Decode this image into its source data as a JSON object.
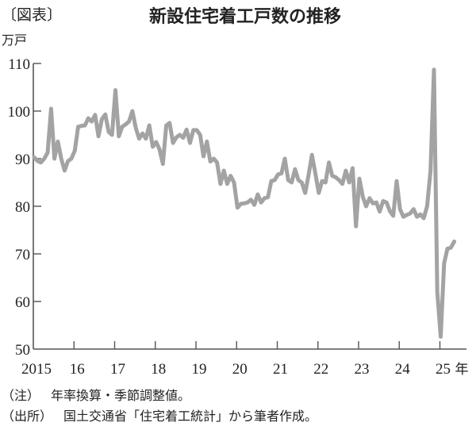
{
  "header": {
    "figure_tag": "〔図表〕",
    "title": "新設住宅着工戸数の推移"
  },
  "chart_data": {
    "type": "line",
    "title": "新設住宅着工戸数の推移",
    "ylabel": "万戸",
    "xlabel": "年",
    "ylim": [
      50,
      110
    ],
    "yticks": [
      50,
      60,
      70,
      80,
      90,
      100,
      110
    ],
    "xtick_labels": [
      "2015",
      "16",
      "17",
      "18",
      "19",
      "20",
      "21",
      "22",
      "23",
      "24",
      "25"
    ],
    "x_unit_label": "年",
    "grid": false,
    "legend": null,
    "line_color": "#a3a3a3",
    "axis_color": "#555555",
    "series": [
      {
        "name": "新設住宅着工戸数（年率換算・季節調整値）",
        "frequency": "monthly",
        "start": "2015-01",
        "values": [
          90.3,
          89.5,
          89.2,
          90.0,
          91.3,
          100.5,
          90.0,
          93.6,
          90.0,
          87.5,
          89.5,
          90.0,
          91.7,
          96.7,
          96.9,
          97.0,
          98.5,
          97.8,
          99.2,
          94.7,
          98.3,
          99.3,
          95.6,
          95.0,
          104.4,
          94.7,
          96.7,
          97.2,
          97.8,
          100.0,
          96.5,
          94.2,
          95.3,
          94.2,
          97.0,
          92.5,
          93.5,
          92.0,
          88.9,
          97.0,
          97.5,
          93.3,
          94.5,
          95.0,
          94.4,
          96.1,
          93.3,
          96.0,
          96.0,
          95.0,
          90.5,
          93.6,
          89.4,
          90.0,
          89.2,
          84.7,
          87.5,
          84.7,
          86.4,
          85.0,
          79.7,
          80.5,
          80.6,
          80.8,
          81.4,
          80.3,
          82.5,
          80.8,
          81.7,
          81.9,
          85.3,
          85.5,
          86.7,
          86.9,
          90.0,
          85.5,
          85.0,
          87.8,
          85.5,
          85.0,
          82.8,
          86.5,
          90.8,
          86.9,
          82.8,
          85.3,
          85.0,
          89.2,
          86.4,
          86.1,
          85.5,
          84.7,
          87.5,
          85.0,
          88.0,
          75.8,
          85.8,
          82.0,
          80.0,
          81.7,
          80.6,
          80.8,
          78.9,
          81.1,
          80.8,
          79.0,
          78.0,
          85.3,
          79.4,
          77.8,
          78.2,
          78.5,
          79.4,
          77.8,
          78.3,
          77.5,
          80.0,
          87.5,
          108.7,
          62.0,
          52.6,
          68.0,
          71.1,
          71.3,
          72.6
        ]
      }
    ],
    "annotations": []
  },
  "notes": [
    {
      "key": "（注）",
      "text": "年率換算・季節調整値。"
    },
    {
      "key": "（出所）",
      "text": "国土交通省「住宅着工統計」から筆者作成。"
    }
  ]
}
